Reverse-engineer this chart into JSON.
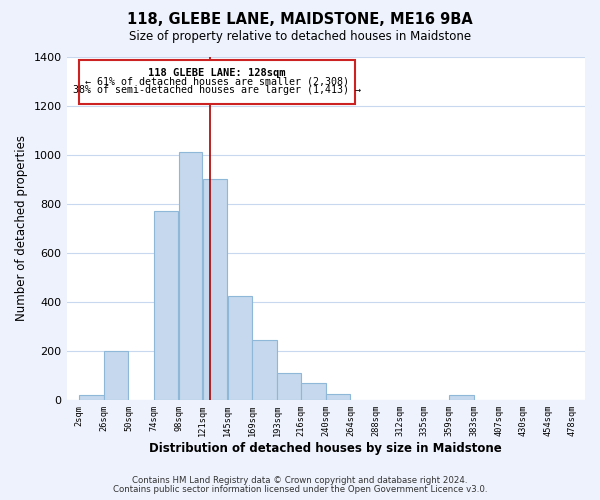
{
  "title": "118, GLEBE LANE, MAIDSTONE, ME16 9BA",
  "subtitle": "Size of property relative to detached houses in Maidstone",
  "xlabel": "Distribution of detached houses by size in Maidstone",
  "ylabel": "Number of detached properties",
  "bar_edges": [
    2,
    26,
    50,
    74,
    98,
    121,
    145,
    169,
    193,
    216,
    240,
    264,
    288,
    312,
    335,
    359,
    383,
    407,
    430,
    454,
    478
  ],
  "bar_heights": [
    20,
    200,
    0,
    770,
    1010,
    900,
    425,
    245,
    110,
    70,
    25,
    0,
    0,
    0,
    0,
    20,
    0,
    0,
    0,
    0
  ],
  "bar_color": "#c5d8ed",
  "bar_edge_color": "#8fb8d8",
  "vline_x": 128,
  "vline_color": "#aa0000",
  "ylim": [
    0,
    1400
  ],
  "yticks": [
    0,
    200,
    400,
    600,
    800,
    1000,
    1200,
    1400
  ],
  "tick_labels": [
    "2sqm",
    "26sqm",
    "50sqm",
    "74sqm",
    "98sqm",
    "121sqm",
    "145sqm",
    "169sqm",
    "193sqm",
    "216sqm",
    "240sqm",
    "264sqm",
    "288sqm",
    "312sqm",
    "335sqm",
    "359sqm",
    "383sqm",
    "407sqm",
    "430sqm",
    "454sqm",
    "478sqm"
  ],
  "annotation_title": "118 GLEBE LANE: 128sqm",
  "annotation_line1": "← 61% of detached houses are smaller (2,308)",
  "annotation_line2": "38% of semi-detached houses are larger (1,413) →",
  "footnote1": "Contains HM Land Registry data © Crown copyright and database right 2024.",
  "footnote2": "Contains public sector information licensed under the Open Government Licence v3.0.",
  "background_color": "#eef2fc",
  "plot_bg_color": "#ffffff",
  "grid_color": "#c8d8ee",
  "box_edge_color": "#cc2222"
}
